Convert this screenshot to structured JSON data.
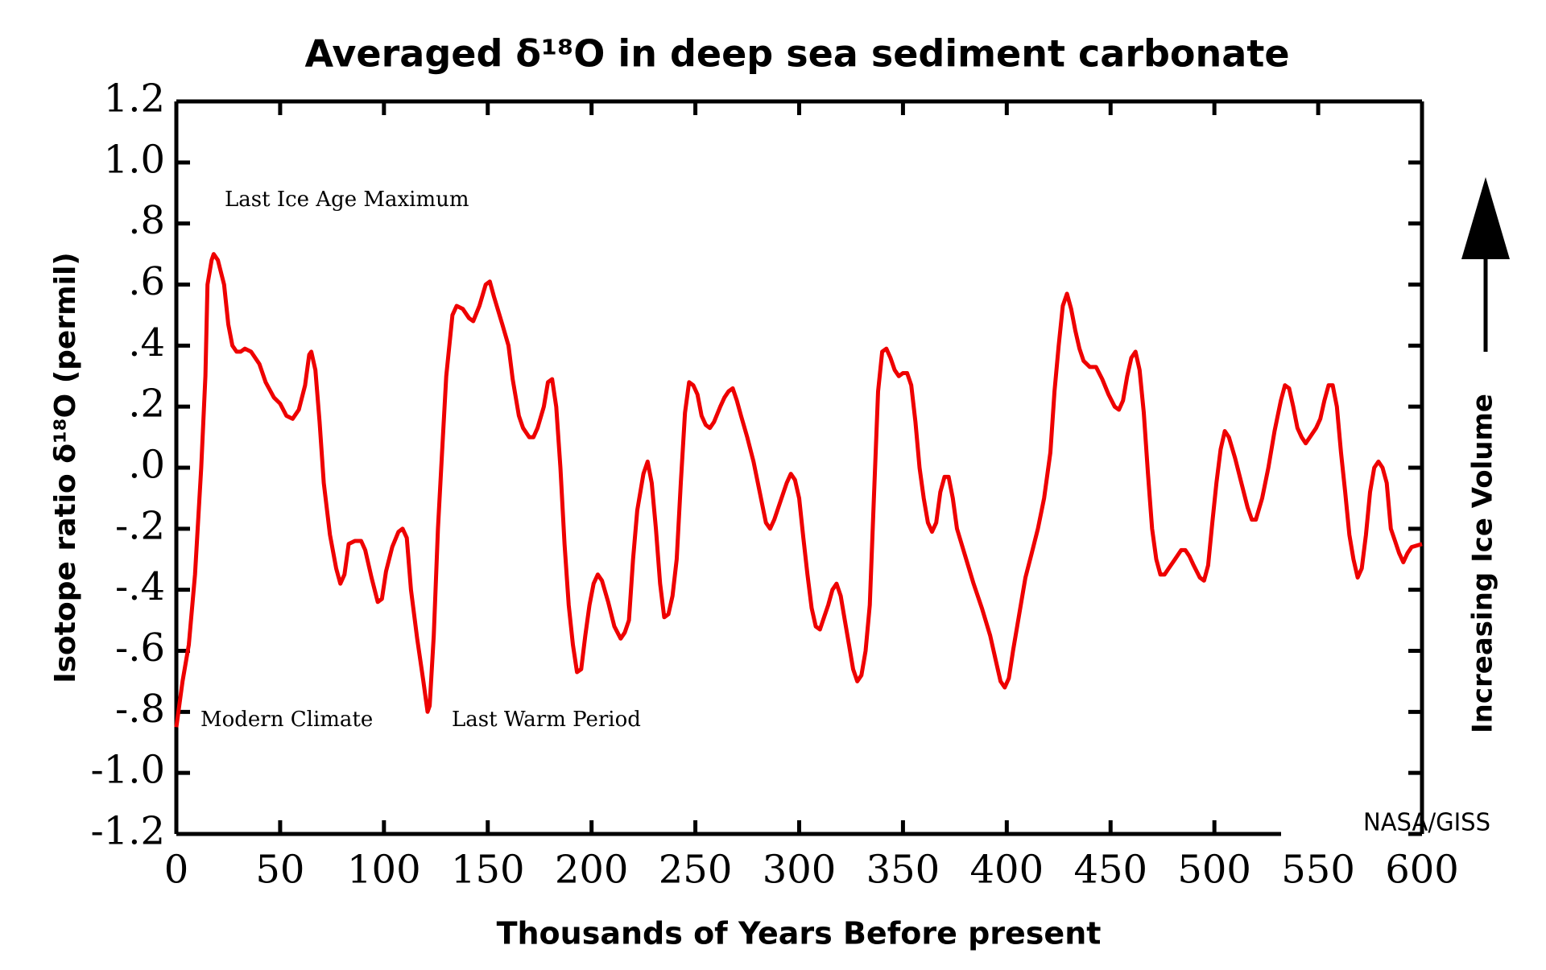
{
  "chart_data": {
    "type": "line",
    "title": "Averaged δ¹⁸O in deep sea sediment carbonate",
    "xlabel": "Thousands of Years Before present",
    "ylabel": "Isotope ratio δ¹⁸O (permil)",
    "right_label": "Increasing Ice Volume",
    "credit": "NASA/GISS",
    "annotations": [
      "Last Ice Age Maximum",
      "Modern Climate",
      "Last Warm Period"
    ],
    "color": "#ee0000",
    "xlim": [
      0,
      600
    ],
    "ylim": [
      -1.2,
      1.2
    ],
    "xticks": [
      0,
      50,
      100,
      150,
      200,
      250,
      300,
      350,
      400,
      450,
      500,
      550,
      600
    ],
    "yticks": [
      -1.2,
      {
        "value": -1.0,
        "label": "-1.0"
      },
      {
        "value": -0.8,
        "label": "-.8"
      },
      {
        "value": -0.6,
        "label": "-.6"
      },
      {
        "value": -0.4,
        "label": "-.4"
      },
      {
        "value": -0.2,
        "label": "-.2"
      },
      {
        "value": 0,
        "label": ".0"
      },
      {
        "value": 0.2,
        "label": ".2"
      },
      {
        "value": 0.4,
        "label": ".4"
      },
      {
        "value": 0.6,
        "label": ".6"
      },
      {
        "value": 0.8,
        "label": ".8"
      },
      {
        "value": 1.0,
        "label": "1.0"
      },
      1.2
    ],
    "x": [
      0,
      3,
      6,
      9,
      12,
      14,
      15,
      17,
      18,
      20,
      23,
      25,
      27,
      29,
      31,
      33,
      36,
      40,
      43,
      47,
      50,
      53,
      56,
      59,
      62,
      64,
      65,
      67,
      69,
      71,
      74,
      77,
      79,
      81,
      83,
      86,
      89,
      91,
      94,
      97,
      99,
      101,
      104,
      107,
      109,
      111,
      113,
      116,
      119,
      121,
      122,
      124,
      126,
      128,
      130,
      133,
      135,
      138,
      141,
      143,
      146,
      149,
      151,
      153,
      157,
      160,
      162,
      165,
      167,
      170,
      172,
      174,
      177,
      179,
      181,
      183,
      185,
      187,
      189,
      191,
      193,
      195,
      197,
      199,
      201,
      203,
      205,
      208,
      211,
      214,
      216,
      218,
      220,
      222,
      225,
      227,
      229,
      231,
      233,
      235,
      237,
      239,
      241,
      243,
      245,
      247,
      249,
      251,
      253,
      255,
      257,
      259,
      262,
      264,
      266,
      268,
      270,
      272,
      275,
      278,
      281,
      284,
      286,
      288,
      291,
      294,
      296,
      298,
      300,
      302,
      304,
      306,
      308,
      310,
      312,
      314,
      316,
      318,
      320,
      322,
      324,
      326,
      328,
      330,
      332,
      334,
      336,
      338,
      340,
      342,
      344,
      346,
      348,
      350,
      352,
      354,
      356,
      358,
      360,
      362,
      364,
      366,
      368,
      370,
      372,
      374,
      376,
      380,
      384,
      388,
      392,
      395,
      397,
      399,
      401,
      403,
      406,
      409,
      412,
      415,
      418,
      421,
      423,
      425,
      427,
      429,
      431,
      433,
      435,
      437,
      440,
      443,
      446,
      449,
      452,
      454,
      456,
      458,
      460,
      462,
      464,
      466,
      468,
      470,
      472,
      474,
      476,
      478,
      481,
      484,
      486,
      488,
      490,
      493,
      495,
      497,
      499,
      501,
      503,
      505,
      507,
      510,
      513,
      516,
      518,
      520,
      523,
      526,
      529,
      532,
      534,
      536,
      538,
      540,
      542,
      544,
      546,
      549,
      551,
      553,
      555,
      557,
      559,
      561,
      563,
      565,
      567,
      569,
      571,
      573,
      575,
      577,
      579,
      581,
      583,
      585,
      587,
      589,
      591,
      593,
      595,
      600
    ],
    "values": [
      -0.85,
      -0.7,
      -0.58,
      -0.35,
      0.0,
      0.3,
      0.6,
      0.68,
      0.7,
      0.68,
      0.6,
      0.47,
      0.4,
      0.38,
      0.38,
      0.39,
      0.38,
      0.34,
      0.28,
      0.23,
      0.21,
      0.17,
      0.16,
      0.19,
      0.27,
      0.37,
      0.38,
      0.32,
      0.15,
      -0.05,
      -0.22,
      -0.33,
      -0.38,
      -0.35,
      -0.25,
      -0.24,
      -0.24,
      -0.27,
      -0.36,
      -0.44,
      -0.43,
      -0.34,
      -0.26,
      -0.21,
      -0.2,
      -0.23,
      -0.4,
      -0.56,
      -0.7,
      -0.8,
      -0.78,
      -0.55,
      -0.2,
      0.05,
      0.3,
      0.5,
      0.53,
      0.52,
      0.49,
      0.48,
      0.53,
      0.6,
      0.61,
      0.56,
      0.47,
      0.4,
      0.29,
      0.17,
      0.13,
      0.1,
      0.1,
      0.13,
      0.2,
      0.28,
      0.29,
      0.2,
      0.0,
      -0.25,
      -0.45,
      -0.58,
      -0.67,
      -0.66,
      -0.55,
      -0.45,
      -0.38,
      -0.35,
      -0.37,
      -0.44,
      -0.52,
      -0.56,
      -0.54,
      -0.5,
      -0.3,
      -0.14,
      -0.02,
      0.02,
      -0.05,
      -0.2,
      -0.38,
      -0.49,
      -0.48,
      -0.42,
      -0.3,
      -0.05,
      0.18,
      0.28,
      0.27,
      0.24,
      0.17,
      0.14,
      0.13,
      0.15,
      0.2,
      0.23,
      0.25,
      0.26,
      0.22,
      0.17,
      0.1,
      0.02,
      -0.08,
      -0.18,
      -0.2,
      -0.17,
      -0.11,
      -0.05,
      -0.02,
      -0.04,
      -0.1,
      -0.23,
      -0.35,
      -0.46,
      -0.52,
      -0.53,
      -0.49,
      -0.45,
      -0.4,
      -0.38,
      -0.42,
      -0.5,
      -0.58,
      -0.66,
      -0.7,
      -0.68,
      -0.6,
      -0.45,
      -0.1,
      0.25,
      0.38,
      0.39,
      0.36,
      0.32,
      0.3,
      0.31,
      0.31,
      0.27,
      0.15,
      0.0,
      -0.1,
      -0.18,
      -0.21,
      -0.18,
      -0.08,
      -0.03,
      -0.03,
      -0.1,
      -0.2,
      -0.29,
      -0.38,
      -0.46,
      -0.55,
      -0.64,
      -0.7,
      -0.72,
      -0.69,
      -0.6,
      -0.48,
      -0.36,
      -0.28,
      -0.2,
      -0.1,
      0.05,
      0.25,
      0.4,
      0.53,
      0.57,
      0.52,
      0.45,
      0.39,
      0.35,
      0.33,
      0.33,
      0.29,
      0.24,
      0.2,
      0.19,
      0.22,
      0.3,
      0.36,
      0.38,
      0.32,
      0.18,
      -0.02,
      -0.2,
      -0.3,
      -0.35,
      -0.35,
      -0.33,
      -0.3,
      -0.27,
      -0.27,
      -0.29,
      -0.32,
      -0.36,
      -0.37,
      -0.32,
      -0.18,
      -0.05,
      0.06,
      0.12,
      0.1,
      0.03,
      -0.05,
      -0.13,
      -0.17,
      -0.17,
      -0.1,
      0.0,
      0.12,
      0.22,
      0.27,
      0.26,
      0.2,
      0.13,
      0.1,
      0.08,
      0.1,
      0.13,
      0.16,
      0.22,
      0.27,
      0.27,
      0.2,
      0.05,
      -0.08,
      -0.22,
      -0.3,
      -0.36,
      -0.33,
      -0.22,
      -0.08,
      0.0,
      0.02,
      0.0,
      -0.05,
      -0.2,
      -0.24,
      -0.28,
      -0.31,
      -0.28,
      -0.26,
      -0.25
    ]
  }
}
